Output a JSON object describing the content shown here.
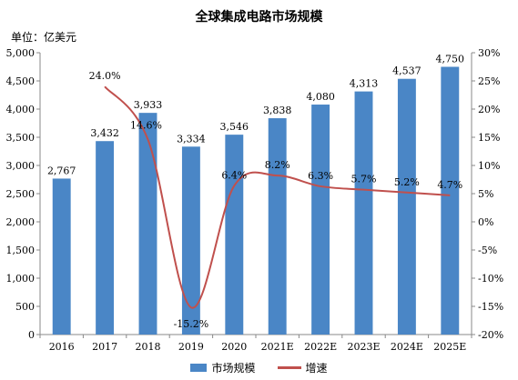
{
  "chart_data": {
    "type": "bar+line",
    "title": "全球集成电路市场规模",
    "unit_label": "单位：亿美元",
    "categories": [
      "2016",
      "2017",
      "2018",
      "2019",
      "2020",
      "2021E",
      "2022E",
      "2023E",
      "2024E",
      "2025E"
    ],
    "series": [
      {
        "name": "市场规模",
        "type": "bar",
        "axis": "left",
        "color": "#4a86c6",
        "values": [
          2767,
          3432,
          3933,
          3334,
          3546,
          3838,
          4080,
          4313,
          4537,
          4750
        ],
        "labels": [
          "2,767",
          "3,432",
          "3,933",
          "3,334",
          "3,546",
          "3,838",
          "4,080",
          "4,313",
          "4,537",
          "4,750"
        ]
      },
      {
        "name": "增速",
        "type": "line",
        "axis": "right",
        "color": "#c0504d",
        "values": [
          null,
          24.0,
          14.6,
          -15.2,
          6.4,
          8.2,
          6.3,
          5.7,
          5.2,
          4.7
        ],
        "labels": [
          "",
          "24.0%",
          "14.6%",
          "-15.2%",
          "6.4%",
          "8.2%",
          "6.3%",
          "5.7%",
          "5.2%",
          "4.7%"
        ]
      }
    ],
    "y_left": {
      "range": [
        0,
        5000
      ],
      "ticks": [
        "0",
        "500",
        "1,000",
        "1,500",
        "2,000",
        "2,500",
        "3,000",
        "3,500",
        "4,000",
        "4,500",
        "5,000"
      ]
    },
    "y_right": {
      "range": [
        -20,
        30
      ],
      "ticks": [
        "-20%",
        "-15%",
        "-10%",
        "-5%",
        "0%",
        "5%",
        "10%",
        "15%",
        "20%",
        "25%",
        "30%"
      ]
    },
    "legend_position": "bottom",
    "grid": false
  }
}
